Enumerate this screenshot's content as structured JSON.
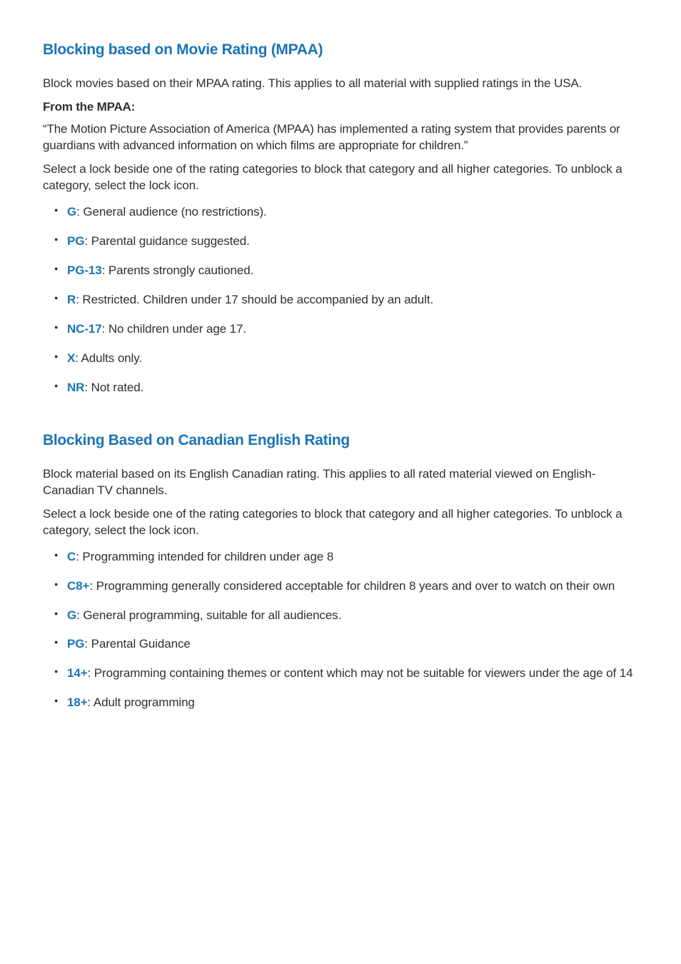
{
  "section1": {
    "heading": "Blocking based on Movie Rating (MPAA)",
    "intro": "Block movies based on their MPAA rating. This applies to all material with supplied ratings in the USA.",
    "subheading": "From the MPAA:",
    "quote": "“The Motion Picture Association of America (MPAA) has implemented a rating system that provides parents or guardians with advanced information on which films are appropriate for children.”",
    "instruction": "Select a lock beside one of the rating categories to block that category and all higher categories. To unblock a category, select the lock icon.",
    "ratings": [
      {
        "code": "G",
        "desc": ": General audience (no restrictions)."
      },
      {
        "code": "PG",
        "desc": ": Parental guidance suggested."
      },
      {
        "code": "PG-13",
        "desc": ": Parents strongly cautioned."
      },
      {
        "code": "R",
        "desc": ": Restricted. Children under 17 should be accompanied by an adult."
      },
      {
        "code": "NC-17",
        "desc": ": No children under age 17."
      },
      {
        "code": "X",
        "desc": ": Adults only."
      },
      {
        "code": "NR",
        "desc": ": Not rated."
      }
    ]
  },
  "section2": {
    "heading": "Blocking Based on Canadian English Rating",
    "intro": "Block material based on its English Canadian rating. This applies to all rated material viewed on English-Canadian TV channels.",
    "instruction": "Select a lock beside one of the rating categories to block that category and all higher categories. To unblock a category, select the lock icon.",
    "ratings": [
      {
        "code": "C",
        "desc": ": Programming intended for children under age 8"
      },
      {
        "code": "C8+",
        "desc": ": Programming generally considered acceptable for children 8 years and over to watch on their own"
      },
      {
        "code": "G",
        "desc": ": General programming, suitable for all audiences."
      },
      {
        "code": "PG",
        "desc": ": Parental Guidance"
      },
      {
        "code": "14+",
        "desc": ": Programming containing themes or content which may not be suitable for viewers under the age of 14"
      },
      {
        "code": "18+",
        "desc": ": Adult programming"
      }
    ]
  },
  "colors": {
    "heading": "#1b74b7",
    "code": "#1b74b7",
    "text": "#2f2f2f",
    "background": "#ffffff"
  }
}
